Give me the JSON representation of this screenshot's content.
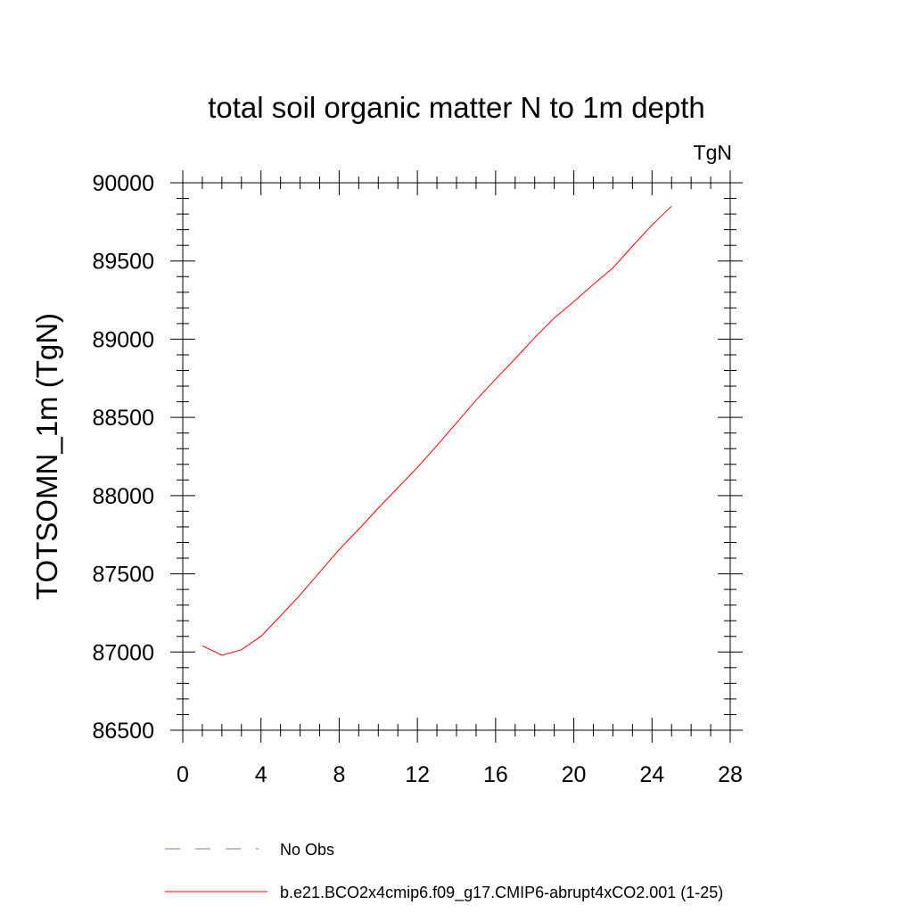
{
  "chart_data": {
    "type": "line",
    "title": "total soil organic matter N to 1m depth",
    "units_label": "TgN",
    "ylabel": "TOTSOMN_1m  (TgN)",
    "xlabel": "",
    "xlim": [
      0,
      28
    ],
    "ylim": [
      86500,
      90000
    ],
    "x_ticks": [
      0,
      4,
      8,
      12,
      16,
      20,
      24,
      28
    ],
    "y_ticks": [
      86500,
      87000,
      87500,
      88000,
      88500,
      89000,
      89500,
      90000
    ],
    "x_tick_labels": [
      "0",
      "4",
      "8",
      "12",
      "16",
      "20",
      "24",
      "28"
    ],
    "y_tick_labels": [
      "86500",
      "87000",
      "87500",
      "88000",
      "88500",
      "89000",
      "89500",
      "90000"
    ],
    "grid": false,
    "legend_position": "bottom",
    "series": [
      {
        "name": "b.e21.BCO2x4cmip6.f09_g17.CMIP6-abrupt4xCO2.001 (1-25)",
        "color": "#ff0000",
        "style": "solid",
        "x": [
          1,
          2,
          3,
          4,
          5,
          6,
          7,
          8,
          9,
          10,
          11,
          12,
          13,
          14,
          15,
          16,
          17,
          18,
          19,
          20,
          21,
          22,
          23,
          24,
          25
        ],
        "y": [
          87040,
          86980,
          87015,
          87100,
          87230,
          87365,
          87510,
          87655,
          87785,
          87920,
          88050,
          88180,
          88320,
          88465,
          88610,
          88745,
          88875,
          89010,
          89135,
          89240,
          89350,
          89455,
          89595,
          89730,
          89850
        ]
      }
    ],
    "legend": [
      {
        "label": "No Obs",
        "color": "#7b6fc9",
        "style": "dashed"
      },
      {
        "label": "b.e21.BCO2x4cmip6.f09_g17.CMIP6-abrupt4xCO2.001 (1-25)",
        "color": "#ff0000",
        "style": "solid"
      }
    ]
  }
}
